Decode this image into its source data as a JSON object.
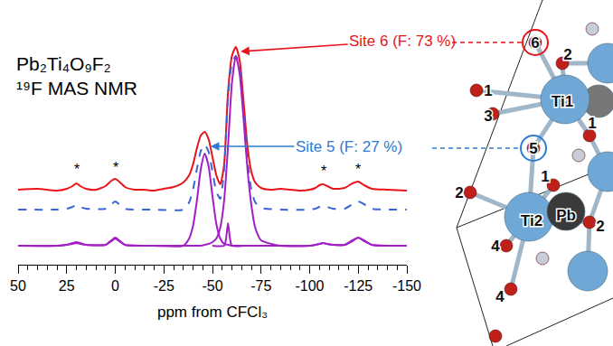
{
  "chart_data": {
    "type": "line",
    "title": [
      "Pb₂Ti₄O₉F₂",
      "¹⁹F MAS NMR"
    ],
    "x_label": "ppm from CFCl₃",
    "xlim": [
      50,
      -150
    ],
    "xticks": [
      50,
      25,
      0,
      -25,
      -50,
      -75,
      -100,
      -125,
      -150
    ],
    "ylim": [
      -21,
      262
    ],
    "tick_labels": "x",
    "grid": false,
    "series": [
      {
        "color": "#e8141a",
        "line_style": "solid",
        "x": [
          50,
          40,
          30,
          25,
          22,
          20,
          18,
          15,
          10,
          5,
          2,
          0,
          -2,
          -5,
          -10,
          -15,
          -20,
          -25,
          -30,
          -35,
          -38,
          -40,
          -42,
          -44,
          -46,
          -48,
          -50,
          -52,
          -54,
          -56,
          -58,
          -60,
          -62,
          -64,
          -66,
          -68,
          -70,
          -72,
          -75,
          -80,
          -85,
          -90,
          -95,
          -100,
          -103,
          -105,
          -107,
          -109,
          -112,
          -118,
          -122,
          -125,
          -128,
          -132,
          -140,
          -150
        ],
        "values": [
          62,
          63,
          61,
          63,
          66,
          69,
          66,
          63,
          62,
          66,
          72,
          74,
          71,
          65,
          62,
          62,
          61,
          63,
          65,
          70,
          78,
          90,
          108,
          122,
          126,
          118,
          98,
          78,
          68,
          90,
          170,
          210,
          220,
          205,
          160,
          110,
          82,
          70,
          64,
          62,
          63,
          62,
          61,
          62,
          64,
          67,
          68,
          66,
          63,
          64,
          69,
          71,
          67,
          63,
          62,
          61
        ]
      },
      {
        "color": "#3a63d6",
        "line_style": "dashed",
        "x": [
          50,
          30,
          25,
          22,
          20,
          18,
          15,
          5,
          2,
          0,
          -2,
          -5,
          -20,
          -35,
          -38,
          -40,
          -42,
          -44,
          -46,
          -48,
          -50,
          -52,
          -54,
          -56,
          -58,
          -60,
          -62,
          -64,
          -66,
          -68,
          -70,
          -72,
          -75,
          -85,
          -100,
          -103,
          -105,
          -107,
          -109,
          -112,
          -118,
          -122,
          -125,
          -128,
          -132,
          -150
        ],
        "values": [
          40,
          40,
          41,
          43,
          45,
          43,
          41,
          41,
          46,
          49,
          46,
          41,
          40,
          40,
          48,
          62,
          85,
          105,
          112,
          104,
          82,
          60,
          52,
          85,
          165,
          202,
          210,
          195,
          150,
          95,
          62,
          48,
          42,
          40,
          40,
          41,
          43,
          44,
          43,
          41,
          41,
          46,
          49,
          46,
          41,
          40
        ]
      },
      {
        "color": "#a21fc4",
        "line_style": "solid",
        "x": [
          50,
          30,
          25,
          22,
          20,
          18,
          15,
          5,
          2,
          0,
          -2,
          -5,
          -20,
          -35,
          -38,
          -40,
          -42,
          -44,
          -46,
          -48,
          -50,
          -52,
          -54,
          -56,
          -58,
          -60,
          -62,
          -64,
          -66,
          -68,
          -70,
          -72,
          -75,
          -85,
          -100,
          -103,
          -105,
          -107,
          -109,
          -112,
          -118,
          -122,
          -125,
          -128,
          -132,
          -150
        ],
        "values": [
          0,
          0,
          1,
          3,
          4,
          3,
          1,
          1,
          6,
          9,
          6,
          1,
          0,
          0,
          8,
          22,
          50,
          85,
          102,
          88,
          55,
          24,
          8,
          2,
          1,
          0,
          0,
          0,
          0,
          0,
          0,
          0,
          0,
          0,
          0,
          1,
          2,
          3,
          2,
          1,
          1,
          6,
          9,
          6,
          1,
          0
        ]
      },
      {
        "color": "#a21fc4",
        "line_style": "solid",
        "x": [
          50,
          30,
          25,
          22,
          20,
          18,
          15,
          5,
          2,
          0,
          -2,
          -5,
          -20,
          -35,
          -38,
          -40,
          -42,
          -44,
          -46,
          -48,
          -50,
          -52,
          -54,
          -56,
          -58,
          -60,
          -62,
          -64,
          -66,
          -68,
          -70,
          -72,
          -75,
          -85,
          -100,
          -103,
          -105,
          -107,
          -109,
          -112,
          -118,
          -122,
          -125,
          -128,
          -132,
          -150
        ],
        "values": [
          0,
          0,
          1,
          2,
          3,
          2,
          1,
          1,
          5,
          8,
          5,
          1,
          0,
          0,
          0,
          0,
          0,
          0,
          1,
          2,
          4,
          8,
          20,
          50,
          110,
          180,
          210,
          190,
          140,
          85,
          45,
          20,
          6,
          0,
          0,
          1,
          2,
          3,
          2,
          1,
          1,
          5,
          9,
          5,
          1,
          0
        ]
      },
      {
        "color": "#a21fc4",
        "line_style": "solid",
        "x": [
          -50,
          -56,
          -57,
          -58,
          -59,
          -60,
          -66
        ],
        "values": [
          0,
          0,
          8,
          25,
          8,
          0,
          0
        ]
      }
    ],
    "annotations": [
      {
        "text": "Site 6 (F: 73 %)",
        "x": -64.5,
        "y": 215,
        "color": "#e8141a"
      },
      {
        "text": "Site 5 (F: 27 %)",
        "x": -49,
        "y": 110,
        "color": "#2b7bd0"
      },
      {
        "text": "*",
        "x": 20,
        "y": 74
      },
      {
        "text": "*",
        "x": 0,
        "y": 76
      },
      {
        "text": "*",
        "x": -107,
        "y": 72
      },
      {
        "text": "*",
        "x": -125,
        "y": 74
      }
    ],
    "structure": {
      "labels": [
        "6",
        "2",
        "1",
        "Ti1",
        "3",
        "1",
        "5",
        "1",
        "2",
        "Ti2",
        "Pb",
        "2",
        "4",
        "4"
      ]
    }
  }
}
